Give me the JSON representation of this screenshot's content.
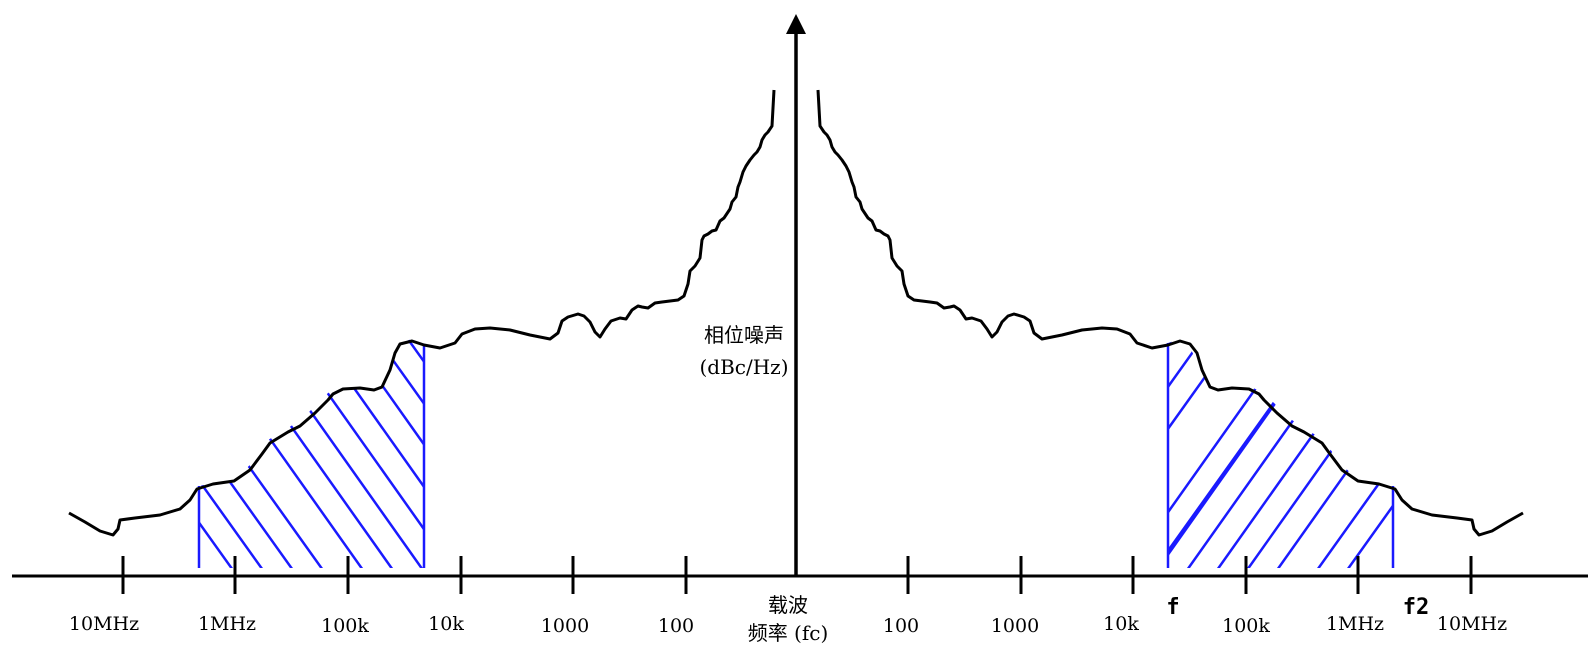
{
  "y_axis_label": {
    "line1": "相位噪声",
    "line2": "(dBc/Hz)"
  },
  "carrier_label": {
    "line1": "载波",
    "line2": "频率 (fc)"
  },
  "left_ticks": [
    "10MHz",
    "1MHz",
    "100k",
    "10k",
    "1000",
    "100"
  ],
  "right_ticks": [
    "100",
    "1000",
    "10k",
    "100k",
    "1MHz",
    "10MHz"
  ],
  "band_markers": {
    "f_lower": "f",
    "f_upper": "f2"
  },
  "colors": {
    "curve": "#000000",
    "hatch": "#1a1aff",
    "axis": "#000000"
  },
  "icons": {
    "y_axis_arrow": "arrow-up-icon"
  }
}
